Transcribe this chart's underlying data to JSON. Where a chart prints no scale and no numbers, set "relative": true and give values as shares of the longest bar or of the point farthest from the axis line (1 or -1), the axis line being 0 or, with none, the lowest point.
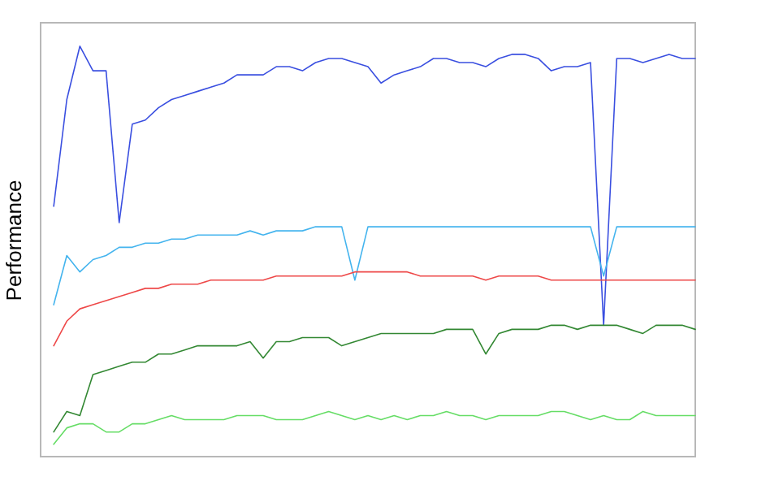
{
  "chart_data": {
    "type": "line",
    "ylabel": "Performance",
    "relative": true,
    "marker": "none",
    "line_style": "solid",
    "categories": [
      null,
      null,
      null,
      null,
      null,
      null,
      null,
      null,
      null,
      null,
      null,
      null,
      null,
      null,
      null,
      null,
      null,
      null,
      null,
      null,
      null,
      null,
      null,
      null,
      null,
      null,
      null,
      null,
      null,
      null,
      null,
      null,
      null,
      null,
      null,
      null,
      null,
      null,
      null,
      null,
      null,
      null,
      null,
      null,
      null,
      null,
      null,
      null,
      null,
      null,
      null
    ],
    "series": [
      {
        "color": "#3a4fe0",
        "values": [
          null,
          0.61,
          0.87,
          1.0,
          0.94,
          0.94,
          0.57,
          0.81,
          0.82,
          0.85,
          0.87,
          0.88,
          0.89,
          0.9,
          0.91,
          0.93,
          0.93,
          0.93,
          0.95,
          0.95,
          0.94,
          0.96,
          0.97,
          0.97,
          0.96,
          0.95,
          0.91,
          0.93,
          0.94,
          0.95,
          0.97,
          0.97,
          0.96,
          0.96,
          0.95,
          0.97,
          0.98,
          0.98,
          0.97,
          0.94,
          0.95,
          0.95,
          0.96,
          0.32,
          0.97,
          0.97,
          0.96,
          0.97,
          0.98,
          0.97,
          0.97
        ]
      },
      {
        "color": "#44b4ee",
        "values": [
          null,
          0.37,
          0.49,
          0.45,
          0.48,
          0.49,
          0.51,
          0.51,
          0.52,
          0.52,
          0.53,
          0.53,
          0.54,
          0.54,
          0.54,
          0.54,
          0.55,
          0.54,
          0.55,
          0.55,
          0.55,
          0.56,
          0.56,
          0.56,
          0.43,
          0.56,
          0.56,
          0.56,
          0.56,
          0.56,
          0.56,
          0.56,
          0.56,
          0.56,
          0.56,
          0.56,
          0.56,
          0.56,
          0.56,
          0.56,
          0.56,
          0.56,
          0.56,
          0.44,
          0.56,
          0.56,
          0.56,
          0.56,
          0.56,
          0.56,
          0.56
        ]
      },
      {
        "color": "#ee4848",
        "values": [
          null,
          0.27,
          0.33,
          0.36,
          0.37,
          0.38,
          0.39,
          0.4,
          0.41,
          0.41,
          0.42,
          0.42,
          0.42,
          0.43,
          0.43,
          0.43,
          0.43,
          0.43,
          0.44,
          0.44,
          0.44,
          0.44,
          0.44,
          0.44,
          0.45,
          0.45,
          0.45,
          0.45,
          0.45,
          0.44,
          0.44,
          0.44,
          0.44,
          0.44,
          0.43,
          0.44,
          0.44,
          0.44,
          0.44,
          0.43,
          0.43,
          0.43,
          0.43,
          0.43,
          0.43,
          0.43,
          0.43,
          0.43,
          0.43,
          0.43,
          0.43
        ]
      },
      {
        "color": "#338833",
        "values": [
          null,
          0.06,
          0.11,
          0.1,
          0.2,
          0.21,
          0.22,
          0.23,
          0.23,
          0.25,
          0.25,
          0.26,
          0.27,
          0.27,
          0.27,
          0.27,
          0.28,
          0.24,
          0.28,
          0.28,
          0.29,
          0.29,
          0.29,
          0.27,
          0.28,
          0.29,
          0.3,
          0.3,
          0.3,
          0.3,
          0.3,
          0.31,
          0.31,
          0.31,
          0.25,
          0.3,
          0.31,
          0.31,
          0.31,
          0.32,
          0.32,
          0.31,
          0.32,
          0.32,
          0.32,
          0.31,
          0.3,
          0.32,
          0.32,
          0.32,
          0.31
        ]
      },
      {
        "color": "#66dd66",
        "values": [
          null,
          0.03,
          0.07,
          0.08,
          0.08,
          0.06,
          0.06,
          0.08,
          0.08,
          0.09,
          0.1,
          0.09,
          0.09,
          0.09,
          0.09,
          0.1,
          0.1,
          0.1,
          0.09,
          0.09,
          0.09,
          0.1,
          0.11,
          0.1,
          0.09,
          0.1,
          0.09,
          0.1,
          0.09,
          0.1,
          0.1,
          0.11,
          0.1,
          0.1,
          0.09,
          0.1,
          0.1,
          0.1,
          0.1,
          0.11,
          0.11,
          0.1,
          0.09,
          0.1,
          0.09,
          0.09,
          0.11,
          0.1,
          0.1,
          0.1,
          0.1
        ]
      }
    ]
  }
}
